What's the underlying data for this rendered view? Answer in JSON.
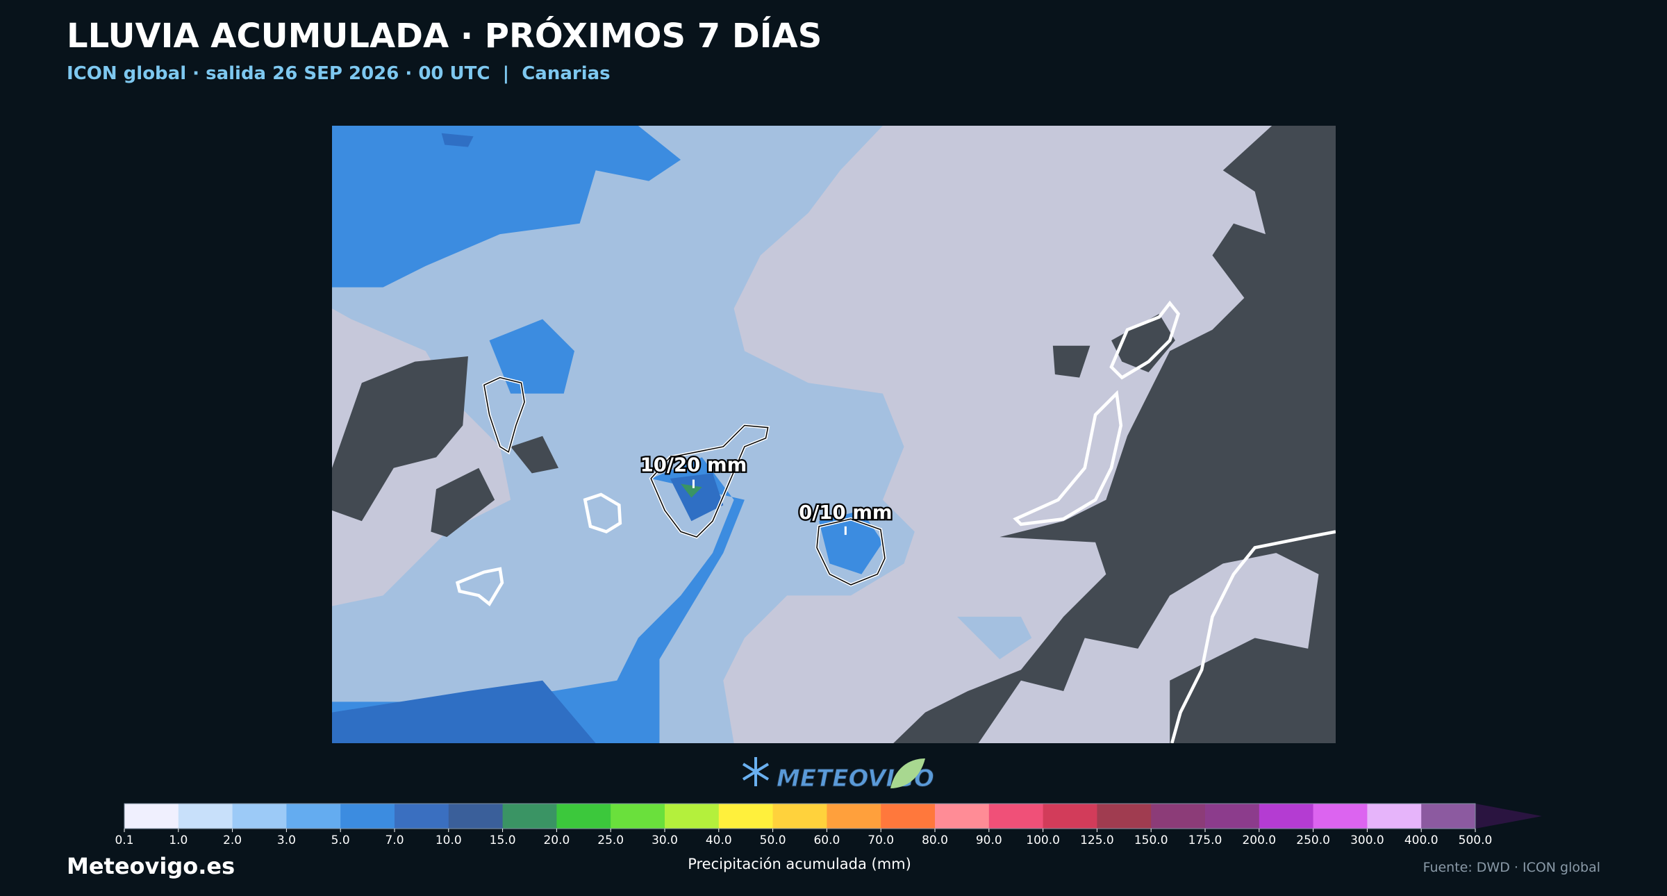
{
  "header": {
    "title": "LLUVIA ACUMULADA · PRÓXIMOS 7 DÍAS",
    "subtitle": "ICON global · salida 26 SEP 2026 · 00 UTC  |  Canarias"
  },
  "map": {
    "annotations": [
      "10/20 mm",
      "0/10 mm"
    ]
  },
  "logo": {
    "text": "METEOVIGO"
  },
  "colorbar": {
    "title": "Precipitación acumulada (mm)",
    "labels": [
      "0.1",
      "1.0",
      "2.0",
      "3.0",
      "5.0",
      "7.0",
      "10.0",
      "15.0",
      "20.0",
      "25.0",
      "30.0",
      "40.0",
      "50.0",
      "60.0",
      "70.0",
      "80.0",
      "90.0",
      "100.0",
      "125.0",
      "150.0",
      "175.0",
      "200.0",
      "250.0",
      "300.0",
      "400.0",
      "500.0"
    ],
    "colors": [
      "#f0f0fe",
      "#c8e0fa",
      "#9ccaf7",
      "#64acf0",
      "#3c8ce0",
      "#3a6fc0",
      "#3a5f9a",
      "#3a9464",
      "#3cc83c",
      "#6ae03c",
      "#b4f03c",
      "#fff03c",
      "#ffd23c",
      "#ffa03c",
      "#ff783c",
      "#ff8c96",
      "#f05078",
      "#d23c5a",
      "#a03c50",
      "#8c3c78",
      "#8c3c8c",
      "#b43cd2",
      "#dc64f0",
      "#e6b4fa",
      "#8c5aa0"
    ],
    "extend_color": "#2a1440"
  },
  "footer": {
    "site": "Meteovigo.es",
    "source": "Fuente: DWD · ICON global"
  }
}
